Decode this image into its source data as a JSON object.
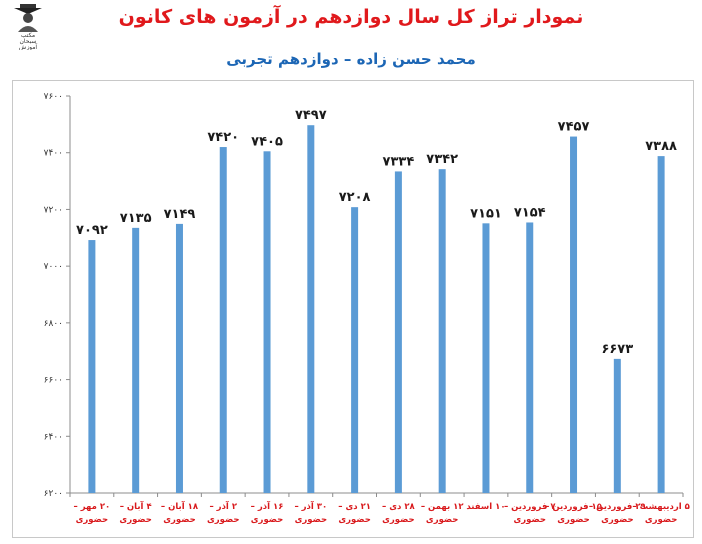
{
  "header": {
    "title": "نمودار تراز کل سال دوازدهم در آزمون های کانون",
    "subtitle": "محمد حسن زاده – دوازدهم تجربی"
  },
  "logo": {
    "line1": "مکتب",
    "line2": "سبحان",
    "line3": "آموزش"
  },
  "chart_data": {
    "type": "bar",
    "title": "نمودار تراز کل سال دوازدهم در آزمون های کانون",
    "subtitle": "محمد حسن زاده – دوازدهم تجربی",
    "categories": [
      [
        "۲۰ مهر –",
        "حضوری"
      ],
      [
        "۴ آبان –",
        "حضوری"
      ],
      [
        "۱۸ آبان –",
        "حضوری"
      ],
      [
        "۲ آذر –",
        "حضوری"
      ],
      [
        "۱۶ آذر –",
        "حضوری"
      ],
      [
        "۳۰ آذر –",
        "حضوری"
      ],
      [
        "۲۱ دی –",
        "حضوری"
      ],
      [
        "۲۸ دی –",
        "حضوری"
      ],
      [
        "۱۲ بهمن –",
        "حضوری"
      ],
      [
        "۱۰ اسفند",
        ""
      ],
      [
        "۷ فروردین –",
        "حضوری"
      ],
      [
        "۱۵ فروردین –",
        "حضوری"
      ],
      [
        "۲۹ فروردین –",
        "حضوری"
      ],
      [
        "۵ اردیبهشت –",
        "حضوری"
      ]
    ],
    "values": [
      7092,
      7135,
      7149,
      7420,
      7405,
      7497,
      7208,
      7334,
      7342,
      7151,
      7154,
      7457,
      6673,
      7388
    ],
    "value_labels": [
      "۷۰۹۲",
      "۷۱۳۵",
      "۷۱۴۹",
      "۷۴۲۰",
      "۷۴۰۵",
      "۷۴۹۷",
      "۷۲۰۸",
      "۷۳۳۴",
      "۷۳۴۲",
      "۷۱۵۱",
      "۷۱۵۴",
      "۷۴۵۷",
      "۶۶۷۳",
      "۷۳۸۸"
    ],
    "yticks": [
      6200,
      6400,
      6600,
      6800,
      7000,
      7200,
      7400,
      7600
    ],
    "ytick_labels": [
      "۶۲۰۰",
      "۶۴۰۰",
      "۶۶۰۰",
      "۶۸۰۰",
      "۷۰۰۰",
      "۷۲۰۰",
      "۷۴۰۰",
      "۷۶۰۰"
    ],
    "ylim": [
      6200,
      7600
    ],
    "grid": false,
    "bar_color": "#5b9bd5",
    "category_label_color": "#d9191c",
    "value_label_color": "#1a1a1a",
    "axis_color": "#8c8c8c"
  }
}
